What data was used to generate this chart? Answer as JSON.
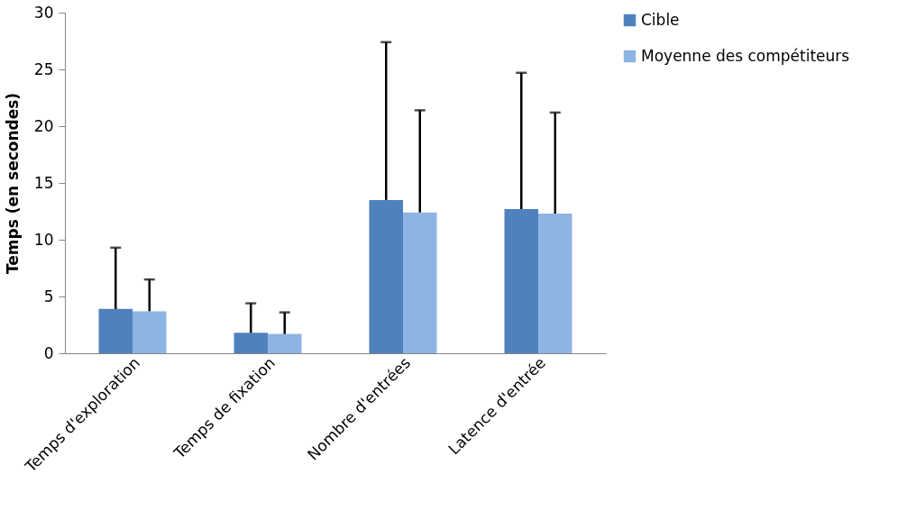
{
  "chart_data": {
    "type": "bar",
    "ylabel": "Temps (en secondes)",
    "categories": [
      "Temps d'exploration",
      "Temps de fixation",
      "Nombre d'entrées",
      "Latence d'entrée"
    ],
    "series": [
      {
        "name": "Cible",
        "color": "#4f81bd",
        "values": [
          3.9,
          1.8,
          13.5,
          12.7
        ],
        "errors": [
          [
            3.9,
            9.3
          ],
          [
            1.8,
            4.4
          ],
          [
            13.5,
            27.4
          ],
          [
            12.7,
            24.7
          ]
        ]
      },
      {
        "name": "Moyenne des compétiteurs",
        "color": "#8eb4e3",
        "values": [
          3.7,
          1.7,
          12.4,
          12.3
        ],
        "errors": [
          [
            3.7,
            6.5
          ],
          [
            1.7,
            3.6
          ],
          [
            12.4,
            21.4
          ],
          [
            12.3,
            21.2
          ]
        ]
      }
    ],
    "ylim": [
      0,
      30
    ],
    "yticks": [
      0,
      5,
      10,
      15,
      20,
      25,
      30
    ],
    "grid": false,
    "legend": "right"
  }
}
